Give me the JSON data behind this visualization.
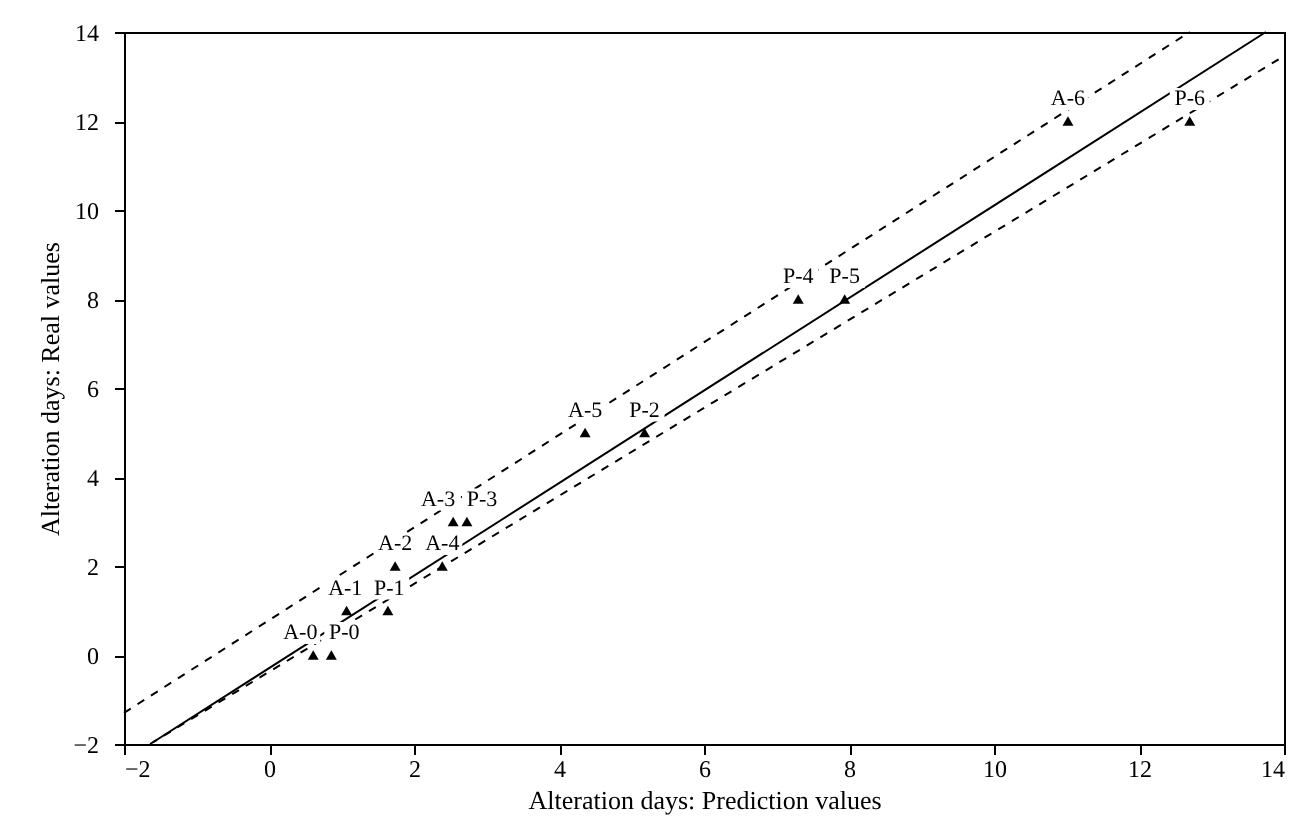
{
  "chart_data": {
    "type": "scatter",
    "xlabel": "Alteration days: Prediction values",
    "ylabel": "Alteration days: Real values",
    "xlim": [
      -2,
      14
    ],
    "ylim": [
      -2,
      14
    ],
    "xticks": [
      -2,
      0,
      2,
      4,
      6,
      8,
      10,
      12,
      14
    ],
    "yticks": [
      -2,
      0,
      2,
      4,
      6,
      8,
      10,
      12,
      14
    ],
    "grid": false,
    "series": [
      {
        "color": "#000000",
        "marker": "triangle",
        "x": [
          0.61,
          0.86,
          1.07,
          1.64,
          1.74,
          2.39,
          2.54,
          2.73,
          4.36,
          5.18,
          7.3,
          7.94,
          11.02,
          12.7
        ],
        "values": [
          0,
          0,
          1,
          1,
          2,
          2,
          3,
          3,
          5,
          5,
          8,
          8,
          12,
          12
        ]
      },
      {
        "type": "line",
        "color": "#000000",
        "line_style": "solid",
        "x": [
          -1.6,
          13.75
        ],
        "values": [
          -1.96,
          14
        ]
      },
      {
        "type": "line",
        "color": "#000000",
        "line_style": "dashed",
        "x": [
          -2,
          12.7
        ],
        "values": [
          -1.3,
          14
        ]
      },
      {
        "type": "line",
        "color": "#000000",
        "line_style": "dashed",
        "x": [
          -1.64,
          14
        ],
        "values": [
          -2,
          13.46
        ]
      }
    ],
    "annotations": [
      {
        "text": "A-0",
        "x": 0.61,
        "y": 0
      },
      {
        "text": "P-0",
        "x": 0.86,
        "y": 0
      },
      {
        "text": "A-1",
        "x": 1.07,
        "y": 1
      },
      {
        "text": "P-1",
        "x": 1.64,
        "y": 1
      },
      {
        "text": "A-2",
        "x": 1.74,
        "y": 2
      },
      {
        "text": "A-4",
        "x": 2.39,
        "y": 2
      },
      {
        "text": "A-3",
        "x": 2.54,
        "y": 3
      },
      {
        "text": "P-3",
        "x": 2.73,
        "y": 3
      },
      {
        "text": "A-5",
        "x": 4.36,
        "y": 5
      },
      {
        "text": "P-2",
        "x": 5.18,
        "y": 5
      },
      {
        "text": "P-4",
        "x": 7.3,
        "y": 8
      },
      {
        "text": "P-5",
        "x": 7.94,
        "y": 8
      },
      {
        "text": "A-6",
        "x": 11.02,
        "y": 12
      },
      {
        "text": "P-6",
        "x": 12.7,
        "y": 12
      }
    ]
  }
}
